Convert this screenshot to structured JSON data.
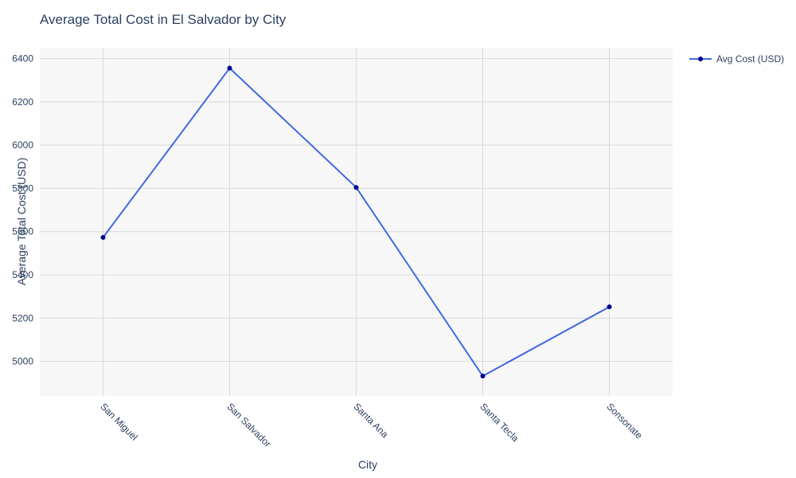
{
  "chart_data": {
    "type": "line",
    "title": "Average Total Cost in El Salvador by City",
    "xlabel": "City",
    "ylabel": "Average Total Cost (USD)",
    "categories": [
      "San Miguel",
      "San Salvador",
      "Santa Ana",
      "Santa Tecla",
      "Sonsonate"
    ],
    "series": [
      {
        "name": "Avg Cost (USD)",
        "values": [
          5573,
          6356,
          5804,
          4932,
          5252
        ]
      }
    ],
    "ylim": [
      4840,
      6450
    ],
    "yticks": [
      5000,
      5200,
      5400,
      5600,
      5800,
      6000,
      6200,
      6400
    ],
    "grid": true,
    "legend_position": "top-right",
    "colors": {
      "line": "#4169E1",
      "marker": "#00008B",
      "plot_bg": "#F7F7F7",
      "grid": "#D9D9D9",
      "text": "#2A3F5F"
    }
  }
}
